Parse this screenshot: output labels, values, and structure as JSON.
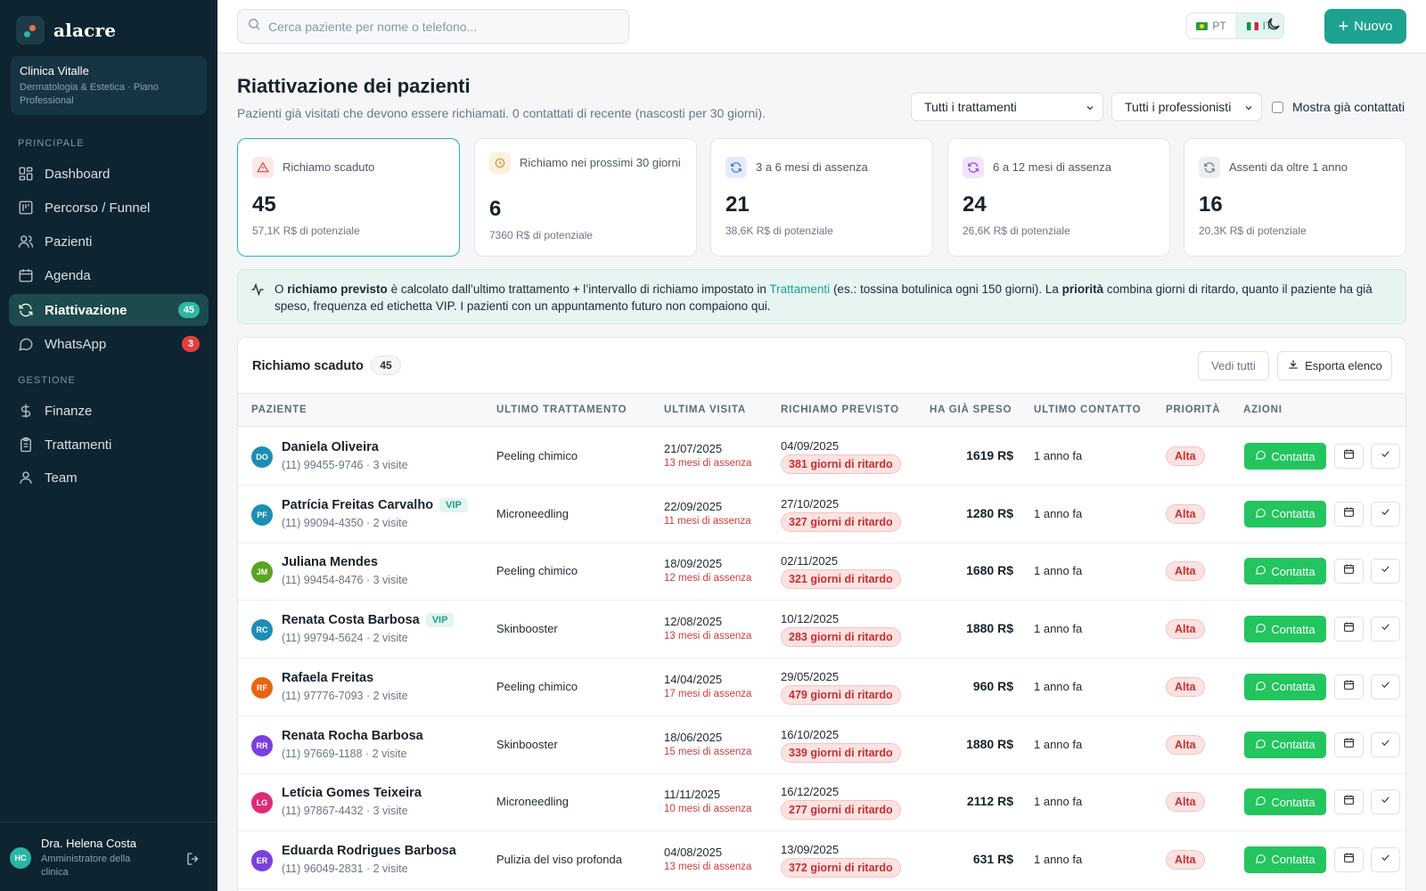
{
  "brand": {
    "name": "alacre"
  },
  "clinic": {
    "name": "Clinica Vitalle",
    "plan": "Dermatologia & Estetica · Piano Professional"
  },
  "nav": {
    "section_main": "PRINCIPALE",
    "section_manage": "GESTIONE",
    "items": [
      {
        "label": "Dashboard",
        "icon": "dashboard-icon"
      },
      {
        "label": "Percorso / Funnel",
        "icon": "funnel-icon"
      },
      {
        "label": "Pazienti",
        "icon": "users-icon"
      },
      {
        "label": "Agenda",
        "icon": "calendar-icon"
      },
      {
        "label": "Riattivazione",
        "icon": "refresh-icon",
        "badge": "45",
        "active": true
      },
      {
        "label": "WhatsApp",
        "icon": "chat-icon",
        "badge": "3"
      },
      {
        "label": "Finanze",
        "icon": "dollar-icon"
      },
      {
        "label": "Trattamenti",
        "icon": "clipboard-icon"
      },
      {
        "label": "Team",
        "icon": "user-icon"
      }
    ]
  },
  "user": {
    "initials": "HC",
    "name": "Dra. Helena Costa",
    "role": "Amministratore della clinica"
  },
  "topbar": {
    "search_placeholder": "Cerca paziente per nome o telefono...",
    "lang_pt": "PT",
    "lang_it": "IT",
    "new_label": "Nuovo"
  },
  "page": {
    "title": "Riattivazione dei pazienti",
    "subtitle": "Pazienti già visitati che devono essere richiamati. 0 contattati di recente (nascosti per 30 giorni).",
    "filter_treatment": "Tutti i trattamenti",
    "filter_professional": "Tutti i professionisti",
    "show_contacted": "Mostra già contattati"
  },
  "stats": [
    {
      "label": "Richiamo scaduto",
      "value": "45",
      "potential": "57,1K R$ di potenziale",
      "color": "#e53e3e"
    },
    {
      "label": "Richiamo nei prossimi 30 giorni",
      "value": "6",
      "potential": "7360 R$ di potenziale",
      "color": "#dd8a2b"
    },
    {
      "label": "3 a 6 mesi di assenza",
      "value": "21",
      "potential": "38,6K R$ di potenziale",
      "color": "#3b6fd4"
    },
    {
      "label": "6 a 12 mesi di assenza",
      "value": "24",
      "potential": "26,6K R$ di potenziale",
      "color": "#8b3fd9"
    },
    {
      "label": "Assenti da oltre 1 anno",
      "value": "16",
      "potential": "20,3K R$ di potenziale",
      "color": "#6b7785"
    }
  ],
  "info": {
    "t1": "O ",
    "b1": "richiamo previsto",
    "t2": " è calcolato dall’ultimo trattamento + l’intervallo di richiamo impostato in ",
    "link": "Trattamenti",
    "t3": " (es.: tossina botulinica ogni 150 giorni). La ",
    "b2": "priorità",
    "t4": " combina giorni di ritardo, quanto il paziente ha già speso, frequenza ed etichetta VIP. I pazienti con un appuntamento futuro non compaiono qui."
  },
  "table": {
    "title": "Richiamo scaduto",
    "count": "45",
    "see_all": "Vedi tutti",
    "export": "Esporta elenco",
    "columns": [
      "PAZIENTE",
      "ULTIMO TRATTAMENTO",
      "ULTIMA VISITA",
      "RICHIAMO PREVISTO",
      "HA GIÀ SPESO",
      "ULTIMO CONTATTO",
      "PRIORITÀ",
      "AZIONI"
    ],
    "contact_label": "Contatta",
    "rows": [
      {
        "initials": "DO",
        "color": "#1b8fb5",
        "name": "Daniela Oliveira",
        "vip": "",
        "phone": "(11) 99455-9746 · 3 visite",
        "treatment": "Peeling chimico",
        "last_visit": "21/07/2025",
        "absence": "13 mesi di assenza",
        "recall": "04/09/2025",
        "late": "381 giorni di ritardo",
        "spent": "1619 R$",
        "last_contact": "1 anno fa",
        "priority": "Alta"
      },
      {
        "initials": "PF",
        "color": "#1b8fb5",
        "name": "Patrícia Freitas Carvalho",
        "vip": "VIP",
        "phone": "(11) 99094-4350 · 2 visite",
        "treatment": "Microneedling",
        "last_visit": "22/09/2025",
        "absence": "11 mesi di assenza",
        "recall": "27/10/2025",
        "late": "327 giorni di ritardo",
        "spent": "1280 R$",
        "last_contact": "1 anno fa",
        "priority": "Alta"
      },
      {
        "initials": "JM",
        "color": "#5aa51e",
        "name": "Juliana Mendes",
        "vip": "",
        "phone": "(11) 99454-8476 · 3 visite",
        "treatment": "Peeling chimico",
        "last_visit": "18/09/2025",
        "absence": "12 mesi di assenza",
        "recall": "02/11/2025",
        "late": "321 giorni di ritardo",
        "spent": "1680 R$",
        "last_contact": "1 anno fa",
        "priority": "Alta"
      },
      {
        "initials": "RC",
        "color": "#1b8fb5",
        "name": "Renata Costa Barbosa",
        "vip": "VIP",
        "phone": "(11) 99794-5624 · 2 visite",
        "treatment": "Skinbooster",
        "last_visit": "12/08/2025",
        "absence": "13 mesi di assenza",
        "recall": "10/12/2025",
        "late": "283 giorni di ritardo",
        "spent": "1880 R$",
        "last_contact": "1 anno fa",
        "priority": "Alta"
      },
      {
        "initials": "RF",
        "color": "#e8650f",
        "name": "Rafaela Freitas",
        "vip": "",
        "phone": "(11) 97776-7093 · 2 visite",
        "treatment": "Peeling chimico",
        "last_visit": "14/04/2025",
        "absence": "17 mesi di assenza",
        "recall": "29/05/2025",
        "late": "479 giorni di ritardo",
        "spent": "960 R$",
        "last_contact": "1 anno fa",
        "priority": "Alta"
      },
      {
        "initials": "RR",
        "color": "#7b3fe0",
        "name": "Renata Rocha Barbosa",
        "vip": "",
        "phone": "(11) 97669-1188 · 2 visite",
        "treatment": "Skinbooster",
        "last_visit": "18/06/2025",
        "absence": "15 mesi di assenza",
        "recall": "16/10/2025",
        "late": "339 giorni di ritardo",
        "spent": "1880 R$",
        "last_contact": "1 anno fa",
        "priority": "Alta"
      },
      {
        "initials": "LG",
        "color": "#e0297a",
        "name": "Letícia Gomes Teixeira",
        "vip": "",
        "phone": "(11) 97867-4432 · 3 visite",
        "treatment": "Microneedling",
        "last_visit": "11/11/2025",
        "absence": "10 mesi di assenza",
        "recall": "16/12/2025",
        "late": "277 giorni di ritardo",
        "spent": "2112 R$",
        "last_contact": "1 anno fa",
        "priority": "Alta"
      },
      {
        "initials": "ER",
        "color": "#7b3fe0",
        "name": "Eduarda Rodrigues Barbosa",
        "vip": "",
        "phone": "(11) 96049-2831 · 2 visite",
        "treatment": "Pulizia del viso profonda",
        "last_visit": "04/08/2025",
        "absence": "13 mesi di assenza",
        "recall": "13/09/2025",
        "late": "372 giorni di ritardo",
        "spent": "631 R$",
        "last_contact": "1 anno fa",
        "priority": "Alta"
      }
    ]
  }
}
